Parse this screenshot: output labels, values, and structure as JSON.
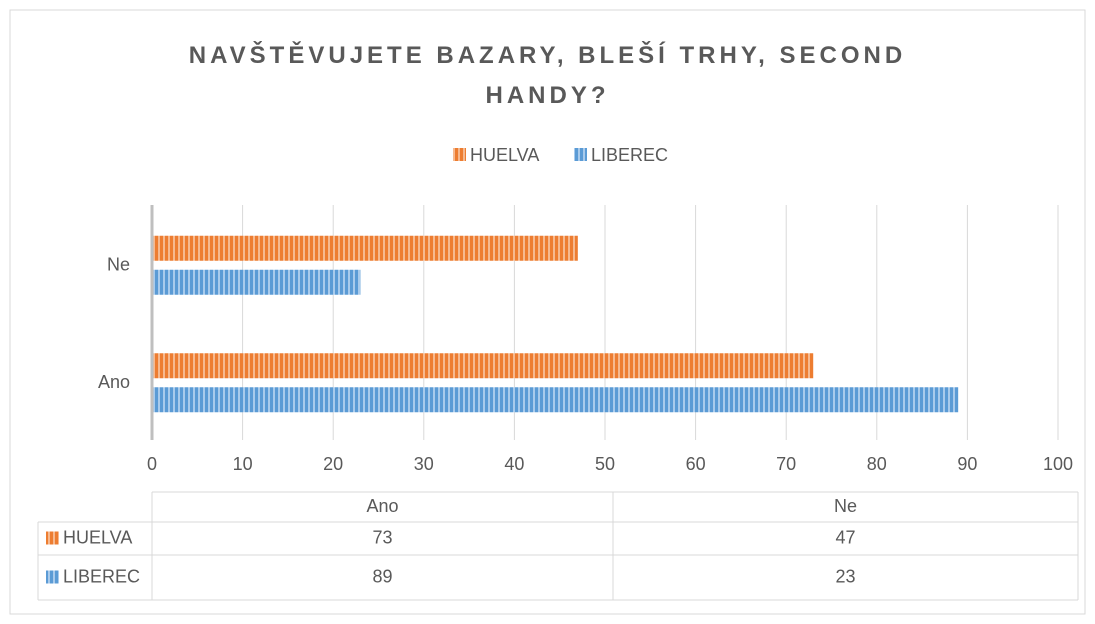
{
  "chart_data": {
    "type": "bar",
    "orientation": "horizontal",
    "title": "NAVŠTĚVUJETE BAZARY, BLEŠÍ TRHY, SECOND HANDY?",
    "categories": [
      "Ano",
      "Ne"
    ],
    "series": [
      {
        "name": "HUELVA",
        "color": "#ed7d31",
        "values": [
          73,
          47
        ]
      },
      {
        "name": "LIBEREC",
        "color": "#5b9bd5",
        "values": [
          89,
          23
        ]
      }
    ],
    "xlim": [
      0,
      100
    ],
    "xticks": [
      0,
      10,
      20,
      30,
      40,
      50,
      60,
      70,
      80,
      90,
      100
    ],
    "grid": true,
    "legend": "top",
    "data_table": true
  }
}
